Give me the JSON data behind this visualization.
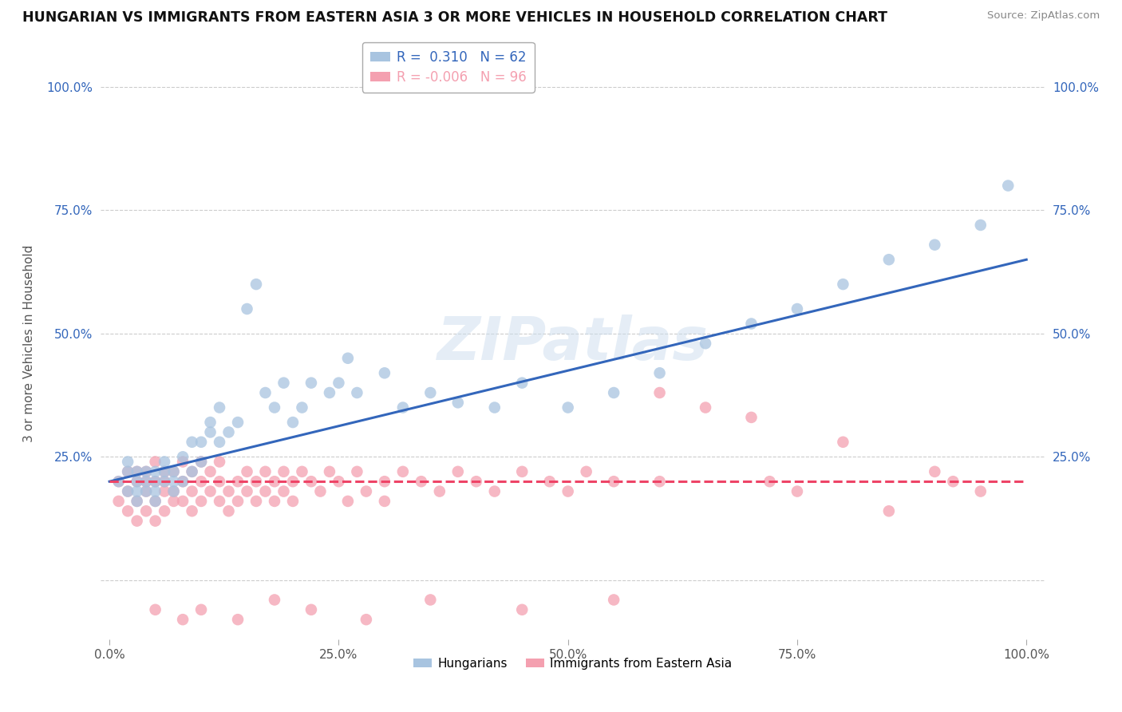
{
  "title": "HUNGARIAN VS IMMIGRANTS FROM EASTERN ASIA 3 OR MORE VEHICLES IN HOUSEHOLD CORRELATION CHART",
  "source": "Source: ZipAtlas.com",
  "ylabel": "3 or more Vehicles in Household",
  "r_hungarian": 0.31,
  "n_hungarian": 62,
  "r_eastern_asia": -0.006,
  "n_eastern_asia": 96,
  "hungarian_color": "#A8C4E0",
  "eastern_asia_color": "#F4A0B0",
  "trendline_hungarian_color": "#3366BB",
  "trendline_eastern_asia_color": "#EE4466",
  "watermark": "ZIPatlas",
  "background_color": "#FFFFFF",
  "grid_color": "#CCCCCC",
  "xlim": [
    -0.01,
    1.02
  ],
  "ylim": [
    -0.12,
    1.08
  ],
  "hungarian_scatter_x": [
    0.01,
    0.02,
    0.02,
    0.02,
    0.03,
    0.03,
    0.03,
    0.03,
    0.04,
    0.04,
    0.04,
    0.05,
    0.05,
    0.05,
    0.05,
    0.06,
    0.06,
    0.06,
    0.07,
    0.07,
    0.07,
    0.08,
    0.08,
    0.09,
    0.09,
    0.1,
    0.1,
    0.11,
    0.11,
    0.12,
    0.12,
    0.13,
    0.14,
    0.15,
    0.16,
    0.17,
    0.18,
    0.19,
    0.2,
    0.21,
    0.22,
    0.24,
    0.25,
    0.26,
    0.27,
    0.3,
    0.32,
    0.35,
    0.38,
    0.42,
    0.45,
    0.5,
    0.55,
    0.6,
    0.65,
    0.7,
    0.75,
    0.8,
    0.85,
    0.9,
    0.95,
    0.98
  ],
  "hungarian_scatter_y": [
    0.2,
    0.18,
    0.22,
    0.24,
    0.2,
    0.22,
    0.18,
    0.16,
    0.18,
    0.22,
    0.2,
    0.18,
    0.22,
    0.2,
    0.16,
    0.2,
    0.22,
    0.24,
    0.2,
    0.18,
    0.22,
    0.2,
    0.25,
    0.22,
    0.28,
    0.24,
    0.28,
    0.3,
    0.32,
    0.28,
    0.35,
    0.3,
    0.32,
    0.55,
    0.6,
    0.38,
    0.35,
    0.4,
    0.32,
    0.35,
    0.4,
    0.38,
    0.4,
    0.45,
    0.38,
    0.42,
    0.35,
    0.38,
    0.36,
    0.35,
    0.4,
    0.35,
    0.38,
    0.42,
    0.48,
    0.52,
    0.55,
    0.6,
    0.65,
    0.68,
    0.72,
    0.8
  ],
  "eastern_asia_scatter_x": [
    0.01,
    0.01,
    0.02,
    0.02,
    0.02,
    0.03,
    0.03,
    0.03,
    0.03,
    0.04,
    0.04,
    0.04,
    0.04,
    0.05,
    0.05,
    0.05,
    0.05,
    0.06,
    0.06,
    0.06,
    0.06,
    0.07,
    0.07,
    0.07,
    0.08,
    0.08,
    0.08,
    0.09,
    0.09,
    0.09,
    0.1,
    0.1,
    0.1,
    0.11,
    0.11,
    0.12,
    0.12,
    0.12,
    0.13,
    0.13,
    0.14,
    0.14,
    0.15,
    0.15,
    0.16,
    0.16,
    0.17,
    0.17,
    0.18,
    0.18,
    0.19,
    0.19,
    0.2,
    0.2,
    0.21,
    0.22,
    0.23,
    0.24,
    0.25,
    0.26,
    0.27,
    0.28,
    0.3,
    0.3,
    0.32,
    0.34,
    0.36,
    0.38,
    0.4,
    0.42,
    0.45,
    0.48,
    0.5,
    0.52,
    0.55,
    0.6,
    0.6,
    0.65,
    0.7,
    0.72,
    0.75,
    0.8,
    0.85,
    0.9,
    0.92,
    0.95,
    0.55,
    0.45,
    0.35,
    0.28,
    0.22,
    0.18,
    0.14,
    0.1,
    0.08,
    0.05
  ],
  "eastern_asia_scatter_y": [
    0.2,
    0.16,
    0.22,
    0.18,
    0.14,
    0.2,
    0.16,
    0.12,
    0.22,
    0.18,
    0.22,
    0.14,
    0.2,
    0.16,
    0.2,
    0.12,
    0.24,
    0.18,
    0.22,
    0.14,
    0.2,
    0.16,
    0.22,
    0.18,
    0.2,
    0.16,
    0.24,
    0.18,
    0.22,
    0.14,
    0.2,
    0.16,
    0.24,
    0.18,
    0.22,
    0.2,
    0.16,
    0.24,
    0.18,
    0.14,
    0.2,
    0.16,
    0.22,
    0.18,
    0.2,
    0.16,
    0.22,
    0.18,
    0.2,
    0.16,
    0.22,
    0.18,
    0.2,
    0.16,
    0.22,
    0.2,
    0.18,
    0.22,
    0.2,
    0.16,
    0.22,
    0.18,
    0.2,
    0.16,
    0.22,
    0.2,
    0.18,
    0.22,
    0.2,
    0.18,
    0.22,
    0.2,
    0.18,
    0.22,
    0.2,
    0.38,
    0.2,
    0.35,
    0.33,
    0.2,
    0.18,
    0.28,
    0.14,
    0.22,
    0.2,
    0.18,
    -0.04,
    -0.06,
    -0.04,
    -0.08,
    -0.06,
    -0.04,
    -0.08,
    -0.06,
    -0.08,
    -0.06
  ]
}
